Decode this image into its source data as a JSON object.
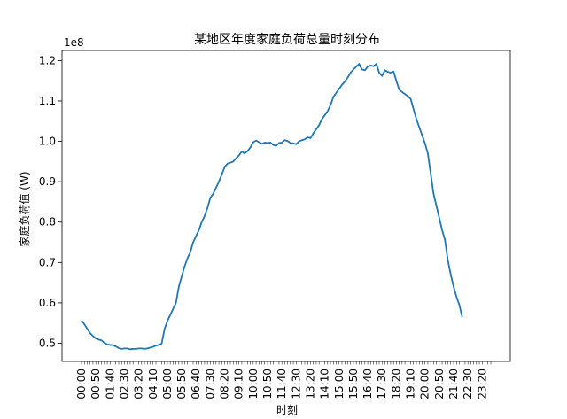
{
  "chart_data": {
    "type": "line",
    "title": "某地区年度家庭负荷总量时刻分布",
    "xlabel": "时刻",
    "ylabel": "家庭负荷值 (W)",
    "y_offset_label": "1e8",
    "ylim": [
      0.455,
      1.225
    ],
    "yticks": [
      0.5,
      0.6,
      0.7,
      0.8,
      0.9,
      1.0,
      1.1,
      1.2
    ],
    "ytick_labels": [
      "0.5",
      "0.6",
      "0.7",
      "0.8",
      "0.9",
      "1.0",
      "1.1",
      "1.2"
    ],
    "x_count": 144,
    "xtick_labels": [
      "00:00",
      "00:50",
      "01:40",
      "02:30",
      "03:20",
      "04:10",
      "05:00",
      "05:50",
      "06:40",
      "07:30",
      "08:20",
      "09:10",
      "10:00",
      "10:50",
      "11:40",
      "12:30",
      "13:20",
      "14:10",
      "15:00",
      "15:50",
      "16:40",
      "17:30",
      "18:20",
      "19:10",
      "20:00",
      "20:50",
      "21:40",
      "22:30",
      "23:20"
    ],
    "grid": false,
    "series": [
      {
        "color": "#1f77b4",
        "values": [
          0.556,
          0.547,
          0.536,
          0.525,
          0.518,
          0.512,
          0.509,
          0.507,
          0.501,
          0.497,
          0.496,
          0.495,
          0.492,
          0.488,
          0.486,
          0.487,
          0.487,
          0.485,
          0.486,
          0.486,
          0.487,
          0.487,
          0.486,
          0.487,
          0.489,
          0.491,
          0.494,
          0.496,
          0.499,
          0.535,
          0.555,
          0.57,
          0.585,
          0.6,
          0.64,
          0.665,
          0.69,
          0.71,
          0.725,
          0.75,
          0.765,
          0.78,
          0.8,
          0.815,
          0.835,
          0.86,
          0.87,
          0.885,
          0.9,
          0.918,
          0.936,
          0.945,
          0.947,
          0.95,
          0.958,
          0.965,
          0.975,
          0.97,
          0.976,
          0.985,
          0.998,
          1.002,
          0.998,
          0.994,
          0.997,
          0.996,
          0.997,
          0.991,
          0.989,
          0.996,
          0.997,
          1.003,
          1.001,
          0.996,
          0.995,
          0.993,
          1.0,
          1.003,
          1.005,
          1.01,
          1.008,
          1.02,
          1.03,
          1.04,
          1.055,
          1.065,
          1.075,
          1.09,
          1.11,
          1.12,
          1.13,
          1.14,
          1.148,
          1.158,
          1.17,
          1.178,
          1.185,
          1.192,
          1.178,
          1.176,
          1.185,
          1.188,
          1.186,
          1.192,
          1.17,
          1.162,
          1.176,
          1.172,
          1.17,
          1.173,
          1.15,
          1.128,
          1.122,
          1.117,
          1.112,
          1.105,
          1.08,
          1.055,
          1.035,
          1.015,
          0.995,
          0.97,
          0.92,
          0.87,
          0.84,
          0.81,
          0.78,
          0.755,
          0.705,
          0.67,
          0.64,
          0.615,
          0.595,
          0.565
        ]
      }
    ]
  }
}
